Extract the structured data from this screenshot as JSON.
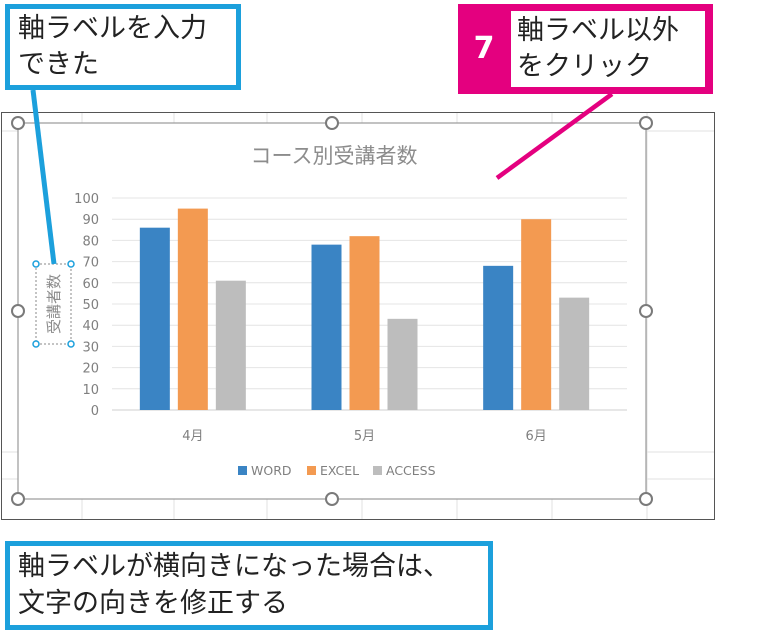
{
  "callouts": {
    "axis_label_done": {
      "line1": "軸ラベルを入力",
      "line2": "できた"
    },
    "step": {
      "number": "7",
      "line1": "軸ラベル以外",
      "line2": "をクリック"
    },
    "note": {
      "line1": "軸ラベルが横向きになった場合は、",
      "line2": "文字の向きを修正する"
    }
  },
  "colors": {
    "callout_blue": "#1ca0dc",
    "callout_magenta": "#e4007f",
    "word": "#3a84c4",
    "excel": "#f39a51",
    "access": "#bdbdbd"
  },
  "chart_data": {
    "type": "bar",
    "title": "コース別受講者数",
    "ylabel": "受講者数",
    "xlabel": "",
    "categories": [
      "4月",
      "5月",
      "6月"
    ],
    "series": [
      {
        "name": "WORD",
        "values": [
          86,
          78,
          68
        ]
      },
      {
        "name": "EXCEL",
        "values": [
          95,
          82,
          90
        ]
      },
      {
        "name": "ACCESS",
        "values": [
          61,
          43,
          53
        ]
      }
    ],
    "ylim": [
      0,
      100
    ],
    "yticks": [
      "0",
      "10",
      "20",
      "30",
      "40",
      "50",
      "60",
      "70",
      "80",
      "90",
      "100"
    ],
    "grid": true,
    "legend_position": "bottom"
  }
}
